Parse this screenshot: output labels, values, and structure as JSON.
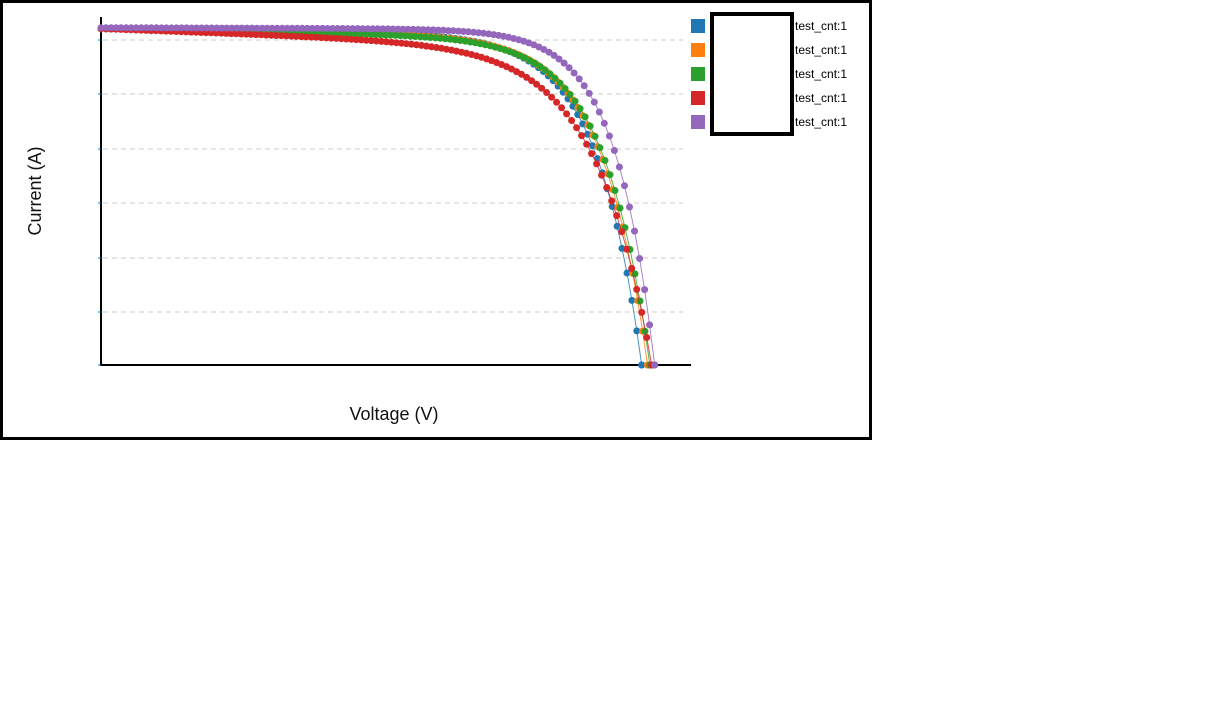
{
  "chart_data": {
    "type": "line",
    "title": "",
    "xlabel": "Voltage (V)",
    "ylabel": "Current (A)",
    "xlim": [
      0,
      1.0
    ],
    "ylim": [
      0,
      1.0
    ],
    "grid": "horizontal-dashed",
    "legend_placement": "top-right",
    "series": [
      {
        "name": "test_cnt:1",
        "color": "#1f77b4",
        "isc": 0.995,
        "slope": 0.02,
        "voc": 0.918,
        "knee": 0.8,
        "n": 12
      },
      {
        "name": "test_cnt:1",
        "color": "#ff7f0e",
        "isc": 0.995,
        "slope": 0.025,
        "voc": 0.928,
        "knee": 0.83,
        "n": 12
      },
      {
        "name": "test_cnt:1",
        "color": "#2ca02c",
        "isc": 0.995,
        "slope": 0.03,
        "voc": 0.932,
        "knee": 0.84,
        "n": 12
      },
      {
        "name": "test_cnt:1",
        "color": "#d62728",
        "isc": 0.995,
        "slope": 0.06,
        "voc": 0.935,
        "knee": 0.82,
        "n": 10
      },
      {
        "name": "test_cnt:1",
        "color": "#9467bd",
        "isc": 0.998,
        "slope": 0.005,
        "voc": 0.94,
        "knee": 0.86,
        "n": 14
      }
    ]
  }
}
